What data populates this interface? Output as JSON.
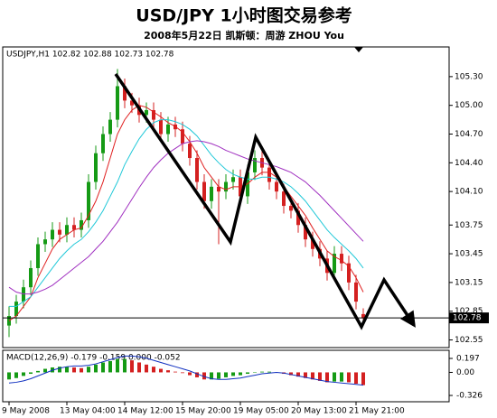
{
  "chart_data": {
    "type": "candlestick",
    "title": "USD/JPY  1小时图交易参考",
    "subtitle": "2008年5月22日   凯斯顿：周游 ZHOU You",
    "header_label": "USDJPY,H1  102.82 102.88 102.73 102.78",
    "categories": [
      "9 May 2008",
      null,
      null,
      null,
      null,
      null,
      null,
      null,
      "13 May 04:00",
      null,
      null,
      null,
      null,
      null,
      null,
      null,
      "14 May 12:00",
      null,
      null,
      null,
      null,
      null,
      null,
      null,
      "15 May 20:00",
      null,
      null,
      null,
      null,
      null,
      null,
      null,
      "19 May 05:00",
      null,
      null,
      null,
      null,
      null,
      null,
      null,
      "20 May 13:00",
      null,
      null,
      null,
      null,
      null,
      null,
      null,
      "21 May 21:00",
      null
    ],
    "open": [
      102.7,
      102.8,
      102.95,
      103.1,
      103.3,
      103.55,
      103.6,
      103.7,
      103.65,
      103.75,
      103.7,
      103.8,
      104.2,
      104.5,
      104.7,
      104.85,
      105.2,
      105.05,
      105.0,
      104.9,
      104.95,
      104.85,
      104.7,
      104.8,
      104.75,
      104.6,
      104.45,
      104.2,
      104.0,
      104.15,
      104.1,
      104.2,
      104.25,
      104.05,
      104.3,
      104.45,
      104.35,
      104.2,
      104.1,
      103.95,
      103.9,
      103.75,
      103.6,
      103.5,
      103.4,
      103.25,
      103.45,
      103.35,
      103.15,
      102.82
    ],
    "high": [
      102.9,
      103.02,
      103.18,
      103.38,
      103.62,
      103.68,
      103.78,
      103.78,
      103.83,
      103.83,
      103.88,
      104.28,
      104.58,
      104.78,
      104.93,
      105.38,
      105.28,
      105.13,
      105.08,
      105.03,
      105.03,
      104.93,
      104.88,
      104.88,
      104.83,
      104.68,
      104.53,
      104.28,
      104.23,
      104.23,
      104.28,
      104.33,
      104.33,
      104.38,
      104.53,
      104.53,
      104.43,
      104.28,
      104.18,
      104.03,
      103.98,
      103.83,
      103.68,
      103.58,
      103.48,
      103.53,
      103.53,
      103.43,
      103.23,
      102.88
    ],
    "low": [
      102.58,
      102.72,
      102.88,
      103.02,
      103.22,
      103.47,
      103.52,
      103.57,
      103.57,
      103.62,
      103.62,
      103.72,
      104.12,
      104.42,
      104.62,
      104.77,
      104.97,
      104.92,
      104.82,
      104.82,
      104.77,
      104.62,
      104.62,
      104.67,
      104.52,
      104.37,
      104.12,
      103.92,
      103.92,
      103.55,
      104.02,
      104.12,
      103.97,
      103.97,
      104.22,
      104.27,
      104.12,
      104.02,
      103.87,
      103.82,
      103.67,
      103.52,
      103.42,
      103.32,
      103.17,
      103.17,
      103.27,
      103.07,
      102.87,
      102.73
    ],
    "close": [
      102.8,
      102.95,
      103.1,
      103.3,
      103.55,
      103.6,
      103.7,
      103.65,
      103.75,
      103.7,
      103.8,
      104.2,
      104.5,
      104.7,
      104.85,
      105.2,
      105.05,
      105.0,
      104.9,
      104.95,
      104.85,
      104.7,
      104.8,
      104.75,
      104.6,
      104.45,
      104.2,
      104.0,
      104.15,
      104.1,
      104.2,
      104.25,
      104.05,
      104.3,
      104.45,
      104.35,
      104.2,
      104.1,
      103.95,
      103.9,
      103.75,
      103.6,
      103.5,
      103.4,
      103.25,
      103.45,
      103.35,
      103.15,
      102.95,
      102.78
    ],
    "up_color": "#159a15",
    "down_color": "#d42020",
    "moving_averages": [
      {
        "color": "#e02020",
        "values": [
          102.75,
          102.8,
          102.9,
          103.0,
          103.2,
          103.35,
          103.5,
          103.6,
          103.65,
          103.7,
          103.72,
          103.85,
          104.0,
          104.2,
          104.45,
          104.7,
          104.85,
          104.95,
          105.0,
          104.98,
          104.93,
          104.88,
          104.82,
          104.78,
          104.72,
          104.62,
          104.5,
          104.35,
          104.25,
          104.15,
          104.12,
          104.15,
          104.15,
          104.18,
          104.25,
          104.3,
          104.3,
          104.25,
          104.15,
          104.05,
          103.95,
          103.85,
          103.72,
          103.6,
          103.48,
          103.42,
          103.38,
          103.32,
          103.2,
          103.05
        ]
      },
      {
        "color": "#20c8d8",
        "values": [
          102.9,
          102.9,
          102.95,
          103.0,
          103.1,
          103.2,
          103.3,
          103.4,
          103.48,
          103.55,
          103.6,
          103.68,
          103.78,
          103.9,
          104.05,
          104.2,
          104.38,
          104.52,
          104.65,
          104.75,
          104.82,
          104.85,
          104.85,
          104.83,
          104.8,
          104.75,
          104.68,
          104.58,
          104.48,
          104.4,
          104.33,
          104.28,
          104.25,
          104.23,
          104.23,
          104.25,
          104.25,
          104.23,
          104.2,
          104.15,
          104.08,
          104.0,
          103.9,
          103.8,
          103.7,
          103.62,
          103.55,
          103.48,
          103.4,
          103.3
        ]
      },
      {
        "color": "#a030c0",
        "values": [
          103.1,
          103.05,
          103.03,
          103.03,
          103.05,
          103.08,
          103.12,
          103.18,
          103.24,
          103.3,
          103.36,
          103.42,
          103.5,
          103.58,
          103.68,
          103.78,
          103.9,
          104.02,
          104.14,
          104.25,
          104.35,
          104.43,
          104.5,
          104.55,
          104.6,
          104.62,
          104.63,
          104.62,
          104.6,
          104.57,
          104.53,
          104.5,
          104.47,
          104.44,
          104.42,
          104.4,
          104.38,
          104.36,
          104.33,
          104.3,
          104.25,
          104.2,
          104.13,
          104.06,
          103.98,
          103.9,
          103.82,
          103.74,
          103.66,
          103.58
        ]
      }
    ],
    "ylim": [
      102.47,
      105.61
    ],
    "yticks": [
      {
        "value": 105.3,
        "label": "105.30"
      },
      {
        "value": 105.0,
        "label": "105.00"
      },
      {
        "value": 104.7,
        "label": "104.70"
      },
      {
        "value": 104.4,
        "label": "104.40"
      },
      {
        "value": 104.1,
        "label": "104.10"
      },
      103.75,
      103.45,
      103.15,
      102.85,
      102.55
    ],
    "current_price": 102.78,
    "macd": {
      "label": "MACD(12,26,9) -0.179 -0.159 0.000 -0.052",
      "histogram": [
        -0.1,
        -0.08,
        -0.05,
        -0.02,
        0.02,
        0.05,
        0.07,
        0.08,
        0.08,
        0.07,
        0.06,
        0.08,
        0.11,
        0.14,
        0.16,
        0.19,
        0.19,
        0.17,
        0.14,
        0.11,
        0.08,
        0.05,
        0.03,
        0.01,
        -0.01,
        -0.04,
        -0.07,
        -0.1,
        -0.1,
        -0.09,
        -0.07,
        -0.05,
        -0.04,
        -0.02,
        0.0,
        0.01,
        0.01,
        0.0,
        -0.02,
        -0.04,
        -0.06,
        -0.08,
        -0.1,
        -0.12,
        -0.14,
        -0.13,
        -0.13,
        -0.14,
        -0.16,
        -0.18
      ],
      "signal": [
        -0.15,
        -0.14,
        -0.12,
        -0.09,
        -0.05,
        -0.01,
        0.03,
        0.06,
        0.08,
        0.09,
        0.09,
        0.1,
        0.12,
        0.15,
        0.18,
        0.21,
        0.23,
        0.23,
        0.22,
        0.2,
        0.17,
        0.14,
        0.11,
        0.08,
        0.05,
        0.02,
        -0.02,
        -0.06,
        -0.09,
        -0.1,
        -0.1,
        -0.09,
        -0.08,
        -0.06,
        -0.04,
        -0.02,
        -0.01,
        0.0,
        -0.01,
        -0.03,
        -0.05,
        -0.07,
        -0.09,
        -0.11,
        -0.13,
        -0.14,
        -0.15,
        -0.16,
        -0.17,
        -0.18
      ],
      "signal_color": "#1030c0",
      "ylim": [
        -0.415,
        0.312
      ],
      "yticks": [
        0.197,
        {
          "value": 0,
          "label": "0.00"
        },
        -0.326
      ]
    }
  }
}
